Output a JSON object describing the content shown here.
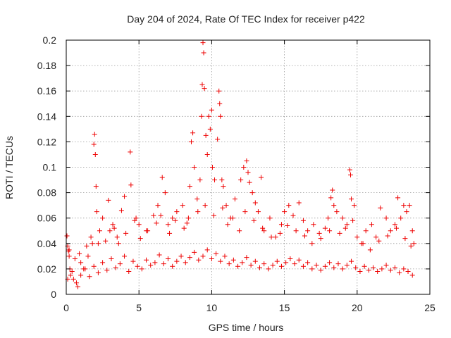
{
  "chart_data": {
    "type": "scatter",
    "title": "Day 204 of 2024, Rate Of TEC Index for receiver p422",
    "xlabel": "GPS time / hours",
    "ylabel": "ROTI / TECUs",
    "xlim": [
      0,
      25
    ],
    "ylim": [
      0,
      0.2
    ],
    "x_ticks": [
      0,
      5,
      10,
      15,
      20,
      25
    ],
    "x_tick_labels": [
      "0",
      "5",
      "10",
      "15",
      "20",
      "25"
    ],
    "y_ticks": [
      0,
      0.02,
      0.04,
      0.06,
      0.08,
      0.1,
      0.12,
      0.14,
      0.16,
      0.18,
      0.2
    ],
    "y_tick_labels": [
      "0",
      "0.02",
      "0.04",
      "0.06",
      "0.08",
      "0.1",
      "0.12",
      "0.14",
      "0.16",
      "0.18",
      "0.2"
    ],
    "grid": true,
    "marker": "plus",
    "color": "#ee0000",
    "series": [
      {
        "x": [
          0.05,
          0.1,
          0.15,
          0.2,
          0.25,
          0.3,
          0.5,
          0.8,
          1.0,
          1.2,
          1.5,
          1.8,
          1.9,
          1.95,
          2.0,
          2.05,
          2.1,
          2.2,
          2.5,
          2.9,
          3.0,
          3.2,
          3.5,
          3.8,
          4.0,
          4.4,
          4.45,
          4.8,
          5.0,
          5.5,
          6.0,
          6.3,
          6.6,
          6.8,
          7.0,
          7.3,
          7.6,
          8.0,
          8.3,
          8.5,
          8.6,
          8.7,
          8.8,
          9.0,
          9.2,
          9.3,
          9.35,
          9.4,
          9.45,
          9.5,
          9.6,
          9.7,
          9.8,
          9.9,
          10.0,
          10.05,
          10.2,
          10.4,
          10.5,
          10.55,
          10.6,
          10.7,
          10.8,
          11.0,
          11.3,
          11.6,
          12.0,
          12.2,
          12.4,
          12.5,
          12.6,
          12.8,
          13.0,
          13.2,
          13.4,
          13.6,
          14.0,
          14.4,
          14.8,
          15.0,
          15.3,
          15.6,
          16.0,
          16.3,
          16.6,
          17.0,
          17.4,
          17.8,
          18.0,
          18.2,
          18.3,
          18.4,
          18.6,
          19.0,
          19.3,
          19.5,
          19.55,
          19.6,
          19.8,
          20.0,
          20.3,
          20.6,
          21.0,
          21.3,
          21.6,
          22.0,
          22.3,
          22.6,
          22.8,
          23.0,
          23.2,
          23.4,
          23.6,
          23.8,
          23.9
        ],
        "y": [
          0.046,
          0.038,
          0.034,
          0.03,
          0.02,
          0.015,
          0.012,
          0.006,
          0.025,
          0.02,
          0.03,
          0.04,
          0.118,
          0.126,
          0.11,
          0.085,
          0.065,
          0.04,
          0.06,
          0.074,
          0.05,
          0.055,
          0.045,
          0.066,
          0.077,
          0.112,
          0.086,
          0.06,
          0.055,
          0.05,
          0.062,
          0.07,
          0.092,
          0.08,
          0.055,
          0.06,
          0.065,
          0.07,
          0.056,
          0.085,
          0.12,
          0.127,
          0.1,
          0.075,
          0.09,
          0.14,
          0.165,
          0.198,
          0.19,
          0.162,
          0.125,
          0.11,
          0.14,
          0.13,
          0.145,
          0.1,
          0.09,
          0.122,
          0.16,
          0.15,
          0.14,
          0.09,
          0.085,
          0.07,
          0.06,
          0.075,
          0.09,
          0.1,
          0.105,
          0.096,
          0.088,
          0.08,
          0.072,
          0.065,
          0.092,
          0.05,
          0.06,
          0.045,
          0.055,
          0.065,
          0.07,
          0.062,
          0.072,
          0.058,
          0.05,
          0.055,
          0.048,
          0.052,
          0.06,
          0.076,
          0.082,
          0.07,
          0.065,
          0.06,
          0.055,
          0.098,
          0.094,
          0.075,
          0.07,
          0.045,
          0.04,
          0.05,
          0.055,
          0.045,
          0.068,
          0.06,
          0.05,
          0.055,
          0.076,
          0.06,
          0.07,
          0.065,
          0.07,
          0.05,
          0.04
        ]
      },
      {
        "x": [
          0.1,
          0.4,
          0.7,
          1.0,
          1.3,
          1.6,
          1.9,
          2.2,
          2.5,
          2.8,
          3.1,
          3.4,
          3.7,
          4.0,
          4.3,
          4.6,
          4.9,
          5.2,
          5.5,
          5.8,
          6.1,
          6.4,
          6.7,
          7.0,
          7.3,
          7.6,
          7.9,
          8.2,
          8.5,
          8.8,
          9.1,
          9.4,
          9.7,
          10.0,
          10.3,
          10.6,
          10.9,
          11.2,
          11.5,
          11.8,
          12.1,
          12.4,
          12.7,
          13.0,
          13.3,
          13.6,
          13.9,
          14.2,
          14.5,
          14.8,
          15.1,
          15.4,
          15.7,
          16.0,
          16.3,
          16.6,
          16.9,
          17.2,
          17.5,
          17.8,
          18.1,
          18.4,
          18.7,
          19.0,
          19.3,
          19.6,
          19.9,
          20.2,
          20.5,
          20.8,
          21.1,
          21.4,
          21.7,
          22.0,
          22.3,
          22.6,
          22.9,
          23.2,
          23.5,
          23.8
        ],
        "y": [
          0.012,
          0.018,
          0.009,
          0.015,
          0.02,
          0.014,
          0.022,
          0.017,
          0.025,
          0.019,
          0.028,
          0.021,
          0.024,
          0.03,
          0.018,
          0.026,
          0.022,
          0.02,
          0.027,
          0.023,
          0.025,
          0.031,
          0.024,
          0.028,
          0.022,
          0.026,
          0.03,
          0.025,
          0.029,
          0.033,
          0.027,
          0.03,
          0.035,
          0.028,
          0.032,
          0.026,
          0.03,
          0.024,
          0.027,
          0.022,
          0.025,
          0.029,
          0.023,
          0.026,
          0.021,
          0.024,
          0.02,
          0.023,
          0.026,
          0.022,
          0.025,
          0.028,
          0.024,
          0.027,
          0.022,
          0.025,
          0.02,
          0.023,
          0.019,
          0.022,
          0.025,
          0.021,
          0.024,
          0.02,
          0.023,
          0.026,
          0.021,
          0.018,
          0.022,
          0.019,
          0.021,
          0.018,
          0.02,
          0.023,
          0.019,
          0.021,
          0.017,
          0.02,
          0.018,
          0.015
        ]
      },
      {
        "x": [
          0.2,
          0.6,
          0.9,
          1.4,
          1.7,
          2.3,
          2.7,
          3.3,
          3.6,
          4.1,
          4.7,
          5.1,
          5.6,
          6.2,
          6.5,
          7.1,
          7.5,
          8.1,
          8.4,
          9.05,
          9.55,
          10.15,
          10.75,
          11.1,
          11.45,
          11.9,
          12.3,
          12.9,
          13.5,
          14.1,
          14.7,
          15.2,
          15.8,
          16.4,
          16.9,
          17.5,
          18.1,
          18.8,
          19.2,
          19.7,
          20.4,
          20.9,
          21.5,
          22.1,
          22.7,
          23.3,
          23.7
        ],
        "y": [
          0.035,
          0.028,
          0.032,
          0.038,
          0.045,
          0.05,
          0.042,
          0.052,
          0.04,
          0.048,
          0.058,
          0.044,
          0.05,
          0.056,
          0.062,
          0.048,
          0.058,
          0.052,
          0.06,
          0.065,
          0.07,
          0.062,
          0.068,
          0.055,
          0.06,
          0.05,
          0.065,
          0.058,
          0.052,
          0.045,
          0.048,
          0.054,
          0.05,
          0.046,
          0.04,
          0.044,
          0.05,
          0.048,
          0.052,
          0.058,
          0.04,
          0.035,
          0.042,
          0.046,
          0.052,
          0.044,
          0.038
        ]
      }
    ]
  }
}
